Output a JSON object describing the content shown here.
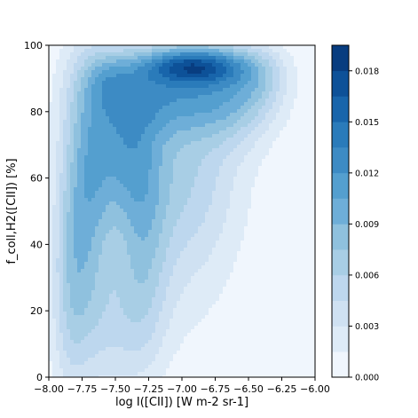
{
  "chart_data": {
    "type": "heatmap",
    "subtype": "filled density contour",
    "title": "",
    "xlabel": "log I([CII]) [W m-2 sr-1]",
    "ylabel": "f_coll,H2([CII]) [%]",
    "xlim": [
      -8.0,
      -6.0
    ],
    "ylim": [
      0,
      100
    ],
    "xticks": [
      -8.0,
      -7.75,
      -7.5,
      -7.25,
      -7.0,
      -6.75,
      -6.5,
      -6.25,
      -6.0
    ],
    "xtick_labels": [
      "−8.00",
      "−7.75",
      "−7.50",
      "−7.25",
      "−7.00",
      "−6.75",
      "−6.50",
      "−6.25",
      "−6.00"
    ],
    "yticks": [
      0,
      20,
      40,
      60,
      80,
      100
    ],
    "ytick_labels": [
      "0",
      "20",
      "40",
      "60",
      "80",
      "100"
    ],
    "grid": false,
    "colormap": "Blues",
    "colorbar": {
      "position": "right",
      "levels": [
        0.0,
        0.0015,
        0.003,
        0.0045,
        0.006,
        0.0075,
        0.009,
        0.0105,
        0.012,
        0.0135,
        0.015,
        0.0165,
        0.018,
        0.0195
      ],
      "colors": [
        "#f0f6fd",
        "#deebf7",
        "#cfe1f2",
        "#bdd7ee",
        "#a8cee5",
        "#8fc1de",
        "#6eaed8",
        "#549fcf",
        "#3d8bc4",
        "#2a7bba",
        "#1865ab",
        "#0d5198",
        "#083d80"
      ],
      "ticks": [
        0.0,
        0.003,
        0.006,
        0.009,
        0.012,
        0.015,
        0.018
      ],
      "tick_labels": [
        "0.000",
        "0.003",
        "0.006",
        "0.009",
        "0.012",
        "0.015",
        "0.018"
      ]
    },
    "density_field": {
      "description": "Gaussian components (data units) whose sum approximates the plotted density",
      "components": [
        {
          "x": -7.72,
          "y": 55,
          "sx": 0.14,
          "sy": 30,
          "amp": 0.008
        },
        {
          "x": -7.45,
          "y": 70,
          "sx": 0.18,
          "sy": 16,
          "amp": 0.0065
        },
        {
          "x": -7.3,
          "y": 40,
          "sx": 0.14,
          "sy": 24,
          "amp": 0.0048
        },
        {
          "x": -7.1,
          "y": 86,
          "sx": 0.38,
          "sy": 9,
          "amp": 0.008
        },
        {
          "x": -6.9,
          "y": 94,
          "sx": 0.28,
          "sy": 4,
          "amp": 0.011
        },
        {
          "x": -7.0,
          "y": 65,
          "sx": 0.32,
          "sy": 18,
          "amp": 0.0045
        },
        {
          "x": -6.6,
          "y": 84,
          "sx": 0.22,
          "sy": 10,
          "amp": 0.0045
        },
        {
          "x": -7.55,
          "y": 90,
          "sx": 0.12,
          "sy": 6,
          "amp": 0.003
        },
        {
          "x": -7.85,
          "y": 25,
          "sx": 0.1,
          "sy": 24,
          "amp": 0.0035
        },
        {
          "x": -7.5,
          "y": 15,
          "sx": 0.22,
          "sy": 15,
          "amp": 0.003
        },
        {
          "x": -7.0,
          "y": 40,
          "sx": 0.3,
          "sy": 22,
          "amp": 0.0025
        },
        {
          "x": -6.4,
          "y": 90,
          "sx": 0.15,
          "sy": 7,
          "amp": 0.003
        }
      ]
    }
  }
}
